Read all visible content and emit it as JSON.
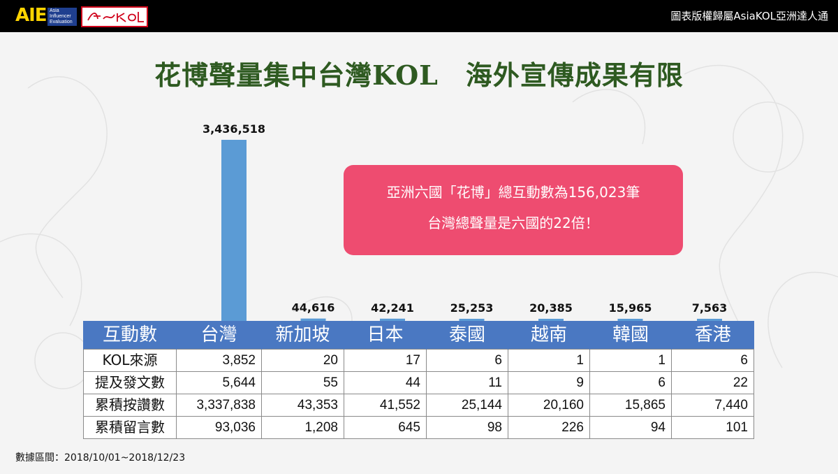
{
  "header": {
    "logo_text": "AIE",
    "logo_subtext": "Asia Influencer Evaluation",
    "logo_signature": "AsiaKOL",
    "copyright": "圖表版權歸屬AsiaKOL亞洲達人通"
  },
  "callout": {
    "line1": "亞洲六國「花博」總互動數為156,023筆",
    "line2": "台灣總聲量是六國的22倍！"
  },
  "footnote": "數據區間：2018/10/01~2018/12/23",
  "colors": {
    "bar": "#5b9bd5",
    "table_header": "#4a78c2",
    "callout": "#ee4c70",
    "title": "#2e5a21"
  },
  "chart_data": {
    "type": "bar",
    "title": "花博聲量集中台灣KOL　海外宣傳成果有限",
    "categories": [
      "台灣",
      "新加坡",
      "日本",
      "泰國",
      "越南",
      "韓國",
      "香港"
    ],
    "values": [
      3436518,
      44616,
      42241,
      25253,
      20385,
      15965,
      7563
    ],
    "value_labels": [
      "3,436,518",
      "44,616",
      "42,241",
      "25,253",
      "20,385",
      "15,965",
      "7,563"
    ],
    "ylim": [
      0,
      3436518
    ],
    "grid": false,
    "table": {
      "corner_header": "互動數",
      "rows": [
        {
          "label": "KOL來源",
          "values": [
            "3,852",
            "20",
            "17",
            "6",
            "1",
            "1",
            "6"
          ]
        },
        {
          "label": "提及發文數",
          "values": [
            "5,644",
            "55",
            "44",
            "11",
            "9",
            "6",
            "22"
          ]
        },
        {
          "label": "累積按讚數",
          "values": [
            "3,337,838",
            "43,353",
            "41,552",
            "25,144",
            "20,160",
            "15,865",
            "7,440"
          ]
        },
        {
          "label": "累積留言數",
          "values": [
            "93,036",
            "1,208",
            "645",
            "98",
            "226",
            "94",
            "101"
          ]
        }
      ]
    }
  }
}
